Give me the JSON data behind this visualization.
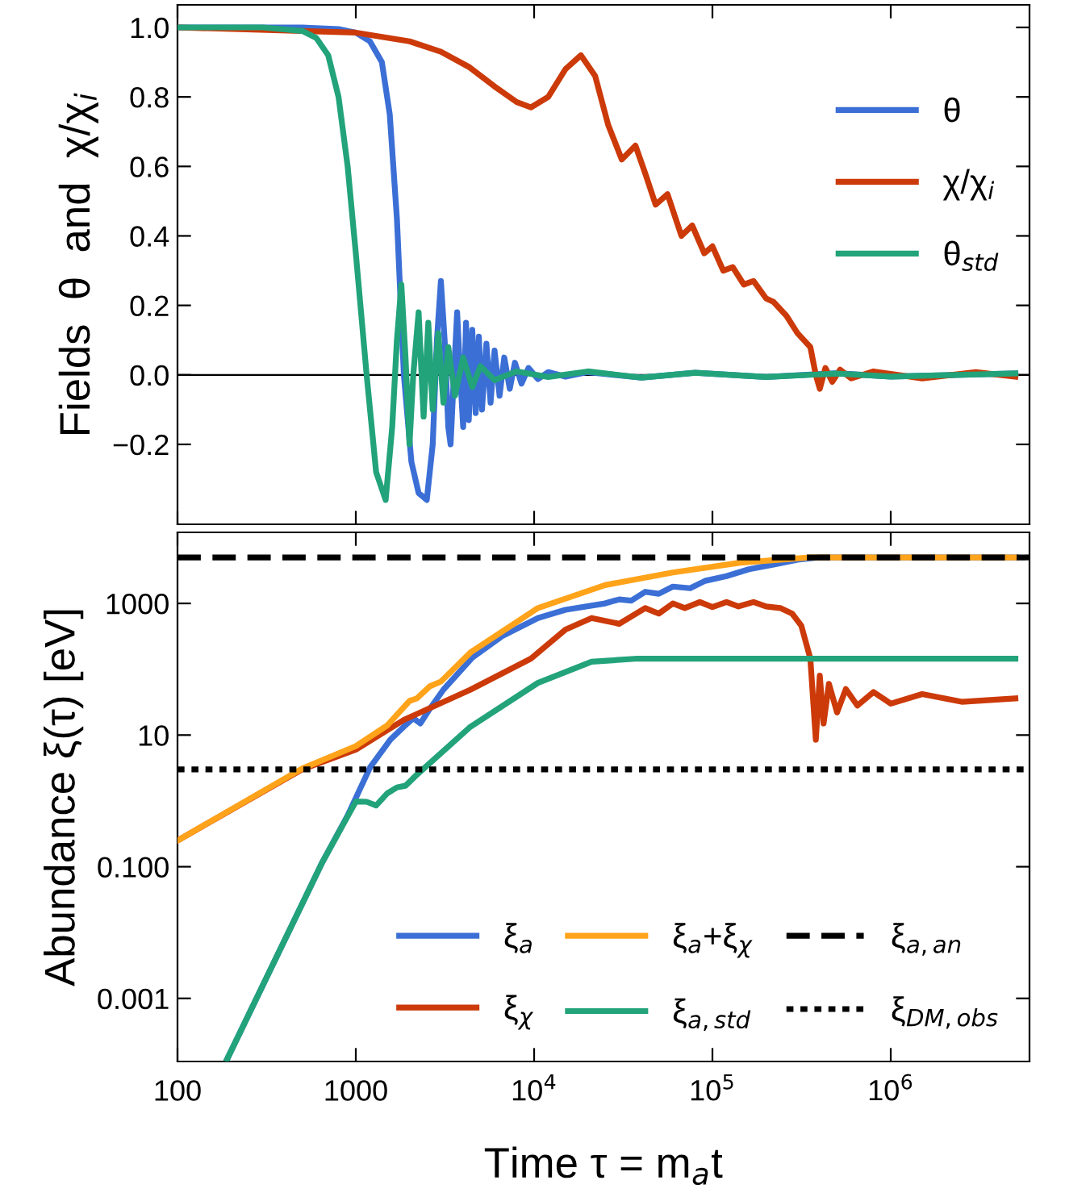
{
  "chart_data": [
    {
      "type": "line",
      "ylabel": "Fields  θ  and  χ/χ$_{i}$",
      "log": "x",
      "grid": false,
      "legend": "upper right",
      "tick_labels": "y",
      "xlim": [
        100,
        6000000
      ],
      "xticks": [
        {
          "value": 100,
          "label": null
        },
        {
          "value": 1000,
          "label": null
        },
        {
          "value": 10000,
          "label": null
        },
        {
          "value": 100000,
          "label": null
        },
        {
          "value": 1000000,
          "label": null
        }
      ],
      "ylim": [
        -0.43,
        1.065
      ],
      "yticks": [
        {
          "value": -0.2,
          "label": "−0.2"
        },
        {
          "value": 0,
          "label": "0.0"
        },
        {
          "value": 0.2,
          "label": "0.2"
        },
        {
          "value": 0.4,
          "label": "0.4"
        },
        {
          "value": 0.6,
          "label": "0.6"
        },
        {
          "value": 0.8,
          "label": "0.8"
        },
        {
          "value": 1,
          "label": "1.0"
        }
      ],
      "ref_lines": [
        {
          "axis": "y",
          "value": 0,
          "color": "#000000",
          "line_style": "solid"
        }
      ],
      "series": [
        {
          "name": "θ",
          "color": "#3b6fd6",
          "x": [
            100,
            500,
            800,
            1000,
            1200,
            1400,
            1550,
            1700,
            1860,
            2050,
            2250,
            2500,
            2700,
            2850,
            3000,
            3150,
            3300,
            3400,
            3550,
            3700,
            3850,
            4000,
            4150,
            4300,
            4500,
            4700,
            4900,
            5100,
            5400,
            5700,
            6000,
            6400,
            6800,
            7300,
            7800,
            8500,
            9300,
            10500,
            12000,
            15000,
            20000,
            40000,
            80000,
            200000,
            500000,
            1000000,
            5000000
          ],
          "values": [
            1,
            1,
            0.995,
            0.985,
            0.96,
            0.9,
            0.75,
            0.45,
            0.0,
            -0.25,
            -0.34,
            -0.36,
            -0.2,
            0.1,
            0.27,
            0.1,
            -0.15,
            -0.2,
            0.0,
            0.18,
            0.0,
            -0.15,
            0.15,
            -0.13,
            0.13,
            -0.11,
            0.11,
            -0.1,
            0.09,
            -0.08,
            0.07,
            -0.06,
            0.05,
            -0.04,
            0.035,
            -0.025,
            0.02,
            -0.012,
            0.008,
            -0.005,
            0.008,
            -0.008,
            0.006,
            -0.006,
            0.005,
            -0.005,
            0.004
          ]
        },
        {
          "name": "χ/χ$_{i}$",
          "color": "#cc3a0a",
          "x": [
            100,
            1000,
            2000,
            3000,
            4350,
            6000,
            8000,
            9600,
            12000,
            15000,
            18300,
            22000,
            26000,
            31000,
            37000,
            42000,
            48000,
            56000,
            67000,
            77000,
            90000,
            100000,
            115000,
            130000,
            150000,
            170000,
            200000,
            220000,
            260000,
            300000,
            354000,
            380000,
            400000,
            430000,
            470000,
            520000,
            600000,
            800000,
            1500000,
            3000000,
            5000000
          ],
          "values": [
            1,
            0.985,
            0.96,
            0.93,
            0.885,
            0.83,
            0.785,
            0.77,
            0.8,
            0.88,
            0.92,
            0.86,
            0.72,
            0.62,
            0.66,
            0.58,
            0.49,
            0.52,
            0.4,
            0.43,
            0.35,
            0.37,
            0.3,
            0.31,
            0.26,
            0.27,
            0.22,
            0.21,
            0.17,
            0.12,
            0.08,
            0.0,
            -0.04,
            0.02,
            -0.02,
            0.015,
            -0.01,
            0.01,
            -0.01,
            0.008,
            -0.005
          ]
        },
        {
          "name": "θ$_{std}$",
          "color": "#22a37a",
          "x": [
            100,
            300,
            500,
            600,
            700,
            800,
            900,
            1000,
            1150,
            1300,
            1470,
            1600,
            1700,
            1800,
            1900,
            2000,
            2100,
            2250,
            2400,
            2550,
            2700,
            2900,
            3100,
            3300,
            3600,
            4000,
            4500,
            5000,
            6000,
            8000,
            12000,
            20000,
            40000,
            80000,
            200000,
            500000,
            1000000,
            5000000
          ],
          "values": [
            1,
            1,
            0.99,
            0.97,
            0.92,
            0.8,
            0.6,
            0.35,
            0.0,
            -0.28,
            -0.36,
            -0.15,
            0.1,
            0.26,
            0.05,
            -0.2,
            0.0,
            0.18,
            -0.12,
            0.15,
            -0.1,
            0.12,
            -0.08,
            0.08,
            -0.06,
            0.05,
            -0.035,
            0.025,
            -0.015,
            0.01,
            -0.006,
            0.01,
            -0.008,
            0.006,
            -0.006,
            0.004,
            -0.005,
            0.004
          ]
        }
      ]
    },
    {
      "type": "line",
      "ylabel": "Abundance ξ(τ) [eV]",
      "xlabel": "Time τ = m$_{a}$t",
      "log": "xy",
      "grid": false,
      "legend": "lower right",
      "xlim": [
        100,
        6000000
      ],
      "xticks": [
        100,
        1000,
        {
          "value": 10000,
          "label": "10$^{4}$"
        },
        {
          "value": 100000,
          "label": "10$^{5}$"
        },
        {
          "value": 1000000,
          "label": "10$^{6}$"
        }
      ],
      "ylim": [
        0.00011,
        12000
      ],
      "yticks": [
        {
          "value": 0.001,
          "label": "0.001"
        },
        {
          "value": 0.1,
          "label": "0.100"
        },
        10,
        1000
      ],
      "ref_lines": [
        {
          "axis": "y",
          "value": 5000,
          "label": "ξ$_{a,an}$",
          "color": "#000000",
          "line_style": "dashed"
        },
        {
          "axis": "y",
          "value": 3,
          "label": "ξ$_{DM,obs}$",
          "color": "#000000",
          "line_style": "dotted"
        }
      ],
      "series": [
        {
          "name": "ξ$_{a}$",
          "color": "#3b6fd6",
          "x": [
            190,
            650,
            900,
            1200,
            1560,
            1860,
            2100,
            2300,
            2600,
            3100,
            4500,
            6700,
            10500,
            15000,
            25000,
            30000,
            35000,
            42000,
            50000,
            60000,
            75000,
            91000,
            120000,
            160000,
            220000,
            300000,
            400000,
            5000000
          ],
          "values": [
            0.00012,
            0.118,
            0.6,
            3.2,
            8.5,
            13.4,
            18,
            15,
            25,
            49,
            150,
            325,
            600,
            800,
            1000,
            1150,
            1100,
            1500,
            1400,
            1800,
            1700,
            2200,
            2600,
            3300,
            3900,
            4600,
            5000,
            5000
          ]
        },
        {
          "name": "ξ$_{χ}$",
          "color": "#cc3a0a",
          "x": [
            100,
            500,
            1000,
            1860,
            4400,
            9600,
            15000,
            21000,
            30000,
            42000,
            50000,
            60000,
            70000,
            85000,
            100000,
            120000,
            140000,
            170000,
            200000,
            240000,
            280000,
            315000,
            354000,
            380000,
            400000,
            420000,
            450000,
            500000,
            560000,
            650000,
            800000,
            1000000,
            1500000,
            2500000,
            5000000
          ],
          "values": [
            0.25,
            3.0,
            6,
            17,
            49,
            145,
            400,
            600,
            490,
            850,
            700,
            1000,
            850,
            1050,
            880,
            1050,
            900,
            1050,
            900,
            850,
            700,
            460,
            145,
            8.5,
            80,
            15,
            60,
            22,
            50,
            28,
            45,
            30,
            42,
            32,
            36
          ]
        },
        {
          "name": "ξ$_{a}$+ξ$_{χ}$",
          "color": "#ffa31a",
          "x": [
            100,
            500,
            1000,
            1500,
            2000,
            2200,
            2600,
            3000,
            4400,
            10500,
            25000,
            60000,
            143000,
            350000,
            5000000
          ],
          "values": [
            0.25,
            3.1,
            6.8,
            14,
            33,
            36,
            55,
            65,
            180,
            850,
            1900,
            2950,
            4150,
            5000,
            5000
          ]
        },
        {
          "name": "ξ$_{a,std}$",
          "color": "#22a37a",
          "x": [
            190,
            650,
            1000,
            1150,
            1300,
            1500,
            1700,
            1900,
            2200,
            4400,
            10500,
            21000,
            38000,
            5000000
          ],
          "values": [
            0.00012,
            0.118,
            0.98,
            0.97,
            0.85,
            1.3,
            1.6,
            1.7,
            2.5,
            13.4,
            62,
            130,
            145,
            145
          ]
        }
      ]
    }
  ]
}
